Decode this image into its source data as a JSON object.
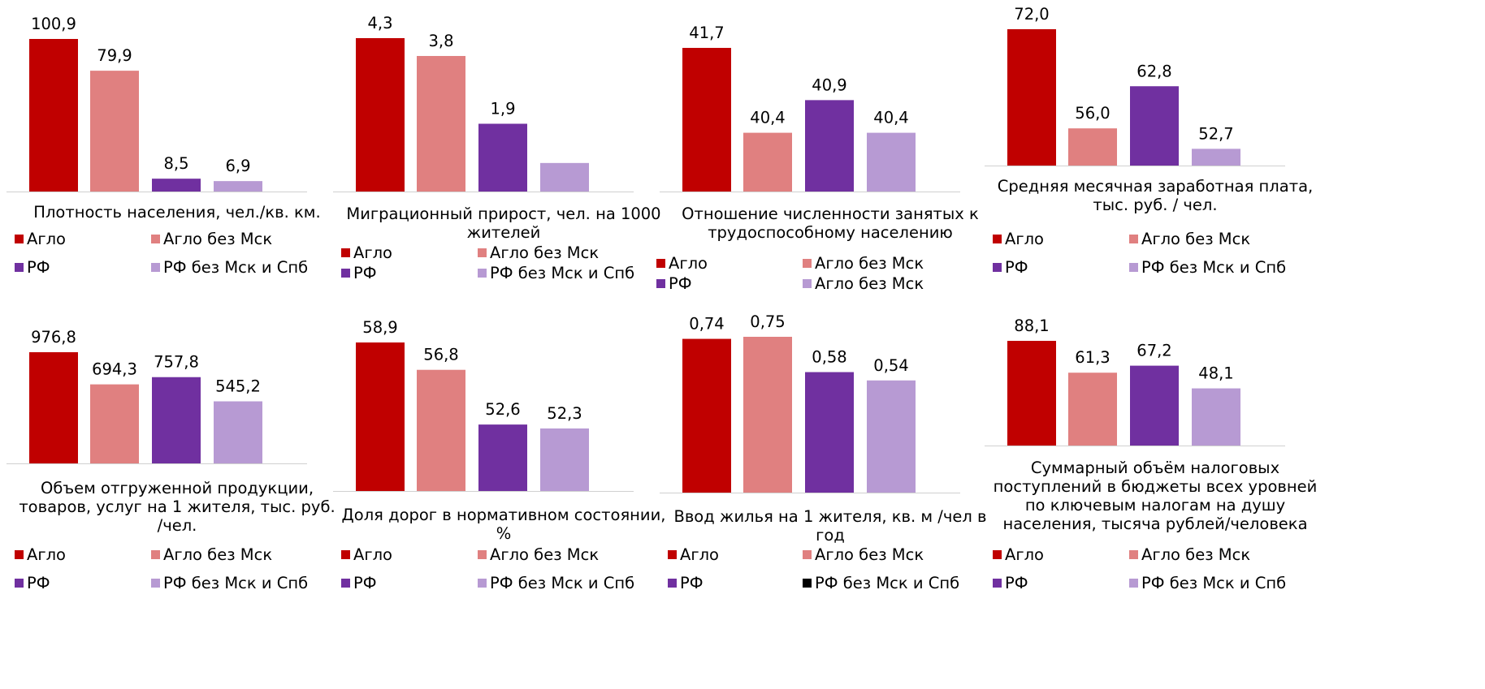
{
  "colors": {
    "aglo": "#c00000",
    "aglo_no_msk": "#e08080",
    "rf": "#7030a0",
    "rf_no_msk_spb": "#b79ad3",
    "rf_no_msk_spb_swatch_alt": "#000000",
    "axis": "#d0d0d0"
  },
  "legend_labels": {
    "aglo": "Агло",
    "aglo_no_msk": "Агло без Мск",
    "rf": "РФ",
    "rf_no_msk_spb": "РФ без Мск и Спб"
  },
  "chart_data": [
    {
      "type": "bar",
      "title": "Плотность населения, чел./кв. км.",
      "categories": [
        "Агло",
        "Агло без Мск",
        "РФ",
        "РФ без Мск и Спб"
      ],
      "values": [
        100.9,
        79.9,
        8.5,
        6.9
      ],
      "labels": [
        "100,9",
        "79,9",
        "8,5",
        "6,9"
      ],
      "ylim": [
        0,
        100.9
      ],
      "legend_position": "bottom"
    },
    {
      "type": "bar",
      "title": "Миграционный прирост, чел. на 1000 жителей",
      "categories": [
        "Агло",
        "Агло без Мск",
        "РФ",
        "РФ без Мск и Спб"
      ],
      "values": [
        4.3,
        3.8,
        1.9,
        0.8
      ],
      "labels": [
        "4,3",
        "3,8",
        "1,9",
        ""
      ],
      "ylim": [
        0,
        4.3
      ],
      "legend_position": "bottom"
    },
    {
      "type": "bar",
      "title": "Отношение численности занятых к трудоспособному населению",
      "categories": [
        "Агло",
        "Агло без Мск",
        "РФ",
        "РФ без Мск и Спб"
      ],
      "values": [
        41.7,
        40.4,
        40.9,
        40.4
      ],
      "labels": [
        "41,7",
        "40,4",
        "40,9",
        "40,4"
      ],
      "ylim": [
        39.5,
        41.7
      ],
      "legend_position": "bottom"
    },
    {
      "type": "bar",
      "title": "Средняя месячная заработная плата, тыс. руб. / чел.",
      "categories": [
        "Агло",
        "Агло без Мск",
        "РФ",
        "РФ без Мск и Спб"
      ],
      "values": [
        72.0,
        56.0,
        62.8,
        52.7
      ],
      "labels": [
        "72,0",
        "56,0",
        "62,8",
        "52,7"
      ],
      "ylim": [
        50,
        72
      ],
      "legend_position": "bottom"
    },
    {
      "type": "bar",
      "title": "Объем отгруженной продукции, товаров, услуг на 1 жителя, тыс. руб. /чел.",
      "categories": [
        "Агло",
        "Агло без Мск",
        "РФ",
        "РФ без Мск и Спб"
      ],
      "values": [
        976.8,
        694.3,
        757.8,
        545.2
      ],
      "labels": [
        "976,8",
        "694,3",
        "757,8",
        "545,2"
      ],
      "ylim": [
        0,
        976.8
      ],
      "legend_position": "bottom"
    },
    {
      "type": "bar",
      "title": "Доля дорог в нормативном состоянии, %",
      "categories": [
        "Агло",
        "Агло без Мск",
        "РФ",
        "РФ без Мск и Спб"
      ],
      "values": [
        58.9,
        56.8,
        52.6,
        52.3
      ],
      "labels": [
        "58,9",
        "56,8",
        "52,6",
        "52,3"
      ],
      "ylim": [
        47.5,
        58.9
      ],
      "legend_position": "bottom"
    },
    {
      "type": "bar",
      "title": "Ввод жилья на 1 жителя, кв. м /чел в год",
      "categories": [
        "Агло",
        "Агло без Мск",
        "РФ",
        "РФ без Мск и Спб"
      ],
      "values": [
        0.74,
        0.75,
        0.58,
        0.54
      ],
      "labels": [
        "0,74",
        "0,75",
        "0,58",
        "0,54"
      ],
      "ylim": [
        0,
        0.75
      ],
      "legend_position": "bottom"
    },
    {
      "type": "bar",
      "title": "Суммарный объём налоговых поступлений в бюджеты всех уровней по ключевым налогам на душу населения, тысяча рублей/человека",
      "categories": [
        "Агло",
        "Агло без Мск",
        "РФ",
        "РФ без Мск и Спб"
      ],
      "values": [
        88.1,
        61.3,
        67.2,
        48.1
      ],
      "labels": [
        "88,1",
        "61,3",
        "67,2",
        "48,1"
      ],
      "ylim": [
        0,
        88.1
      ],
      "legend_position": "bottom"
    }
  ]
}
